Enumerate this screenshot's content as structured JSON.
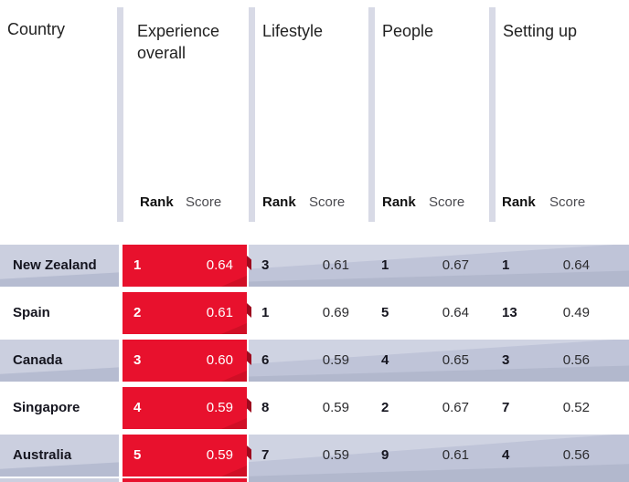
{
  "table": {
    "country_header": "Country",
    "sections": [
      {
        "title": "Experience overall",
        "rank_label": "Rank",
        "score_label": "Score",
        "highlighted": true
      },
      {
        "title": "Lifestyle",
        "rank_label": "Rank",
        "score_label": "Score",
        "highlighted": false
      },
      {
        "title": "People",
        "rank_label": "Rank",
        "score_label": "Score",
        "highlighted": false
      },
      {
        "title": "Setting up",
        "rank_label": "Rank",
        "score_label": "Score",
        "highlighted": false
      }
    ],
    "rows": [
      {
        "country": "New Zealand",
        "shaded": true,
        "experience_overall": {
          "rank": "1",
          "score": "0.64"
        },
        "lifestyle": {
          "rank": "3",
          "score": "0.61"
        },
        "people": {
          "rank": "1",
          "score": "0.67"
        },
        "setting_up": {
          "rank": "1",
          "score": "0.64"
        }
      },
      {
        "country": "Spain",
        "shaded": false,
        "experience_overall": {
          "rank": "2",
          "score": "0.61"
        },
        "lifestyle": {
          "rank": "1",
          "score": "0.69"
        },
        "people": {
          "rank": "5",
          "score": "0.64"
        },
        "setting_up": {
          "rank": "13",
          "score": "0.49"
        }
      },
      {
        "country": "Canada",
        "shaded": true,
        "experience_overall": {
          "rank": "3",
          "score": "0.60"
        },
        "lifestyle": {
          "rank": "6",
          "score": "0.59"
        },
        "people": {
          "rank": "4",
          "score": "0.65"
        },
        "setting_up": {
          "rank": "3",
          "score": "0.56"
        }
      },
      {
        "country": "Singapore",
        "shaded": false,
        "experience_overall": {
          "rank": "4",
          "score": "0.59"
        },
        "lifestyle": {
          "rank": "8",
          "score": "0.59"
        },
        "people": {
          "rank": "2",
          "score": "0.67"
        },
        "setting_up": {
          "rank": "7",
          "score": "0.52"
        }
      },
      {
        "country": "Australia",
        "shaded": true,
        "experience_overall": {
          "rank": "5",
          "score": "0.59"
        },
        "lifestyle": {
          "rank": "7",
          "score": "0.59"
        },
        "people": {
          "rank": "9",
          "score": "0.61"
        },
        "setting_up": {
          "rank": "4",
          "score": "0.56"
        }
      }
    ]
  },
  "colors": {
    "highlight_red": "#e8112d",
    "highlight_red_fold": "#9d0a1e",
    "shaded_row_base": "#cbcfdf",
    "band_base": "#bfc4d8",
    "band_light": "#cfd3e2",
    "band_dark": "#b2b8cd",
    "header_divider": "#d8dae6",
    "text_dark": "#15151f",
    "white_text": "#ffffff"
  }
}
